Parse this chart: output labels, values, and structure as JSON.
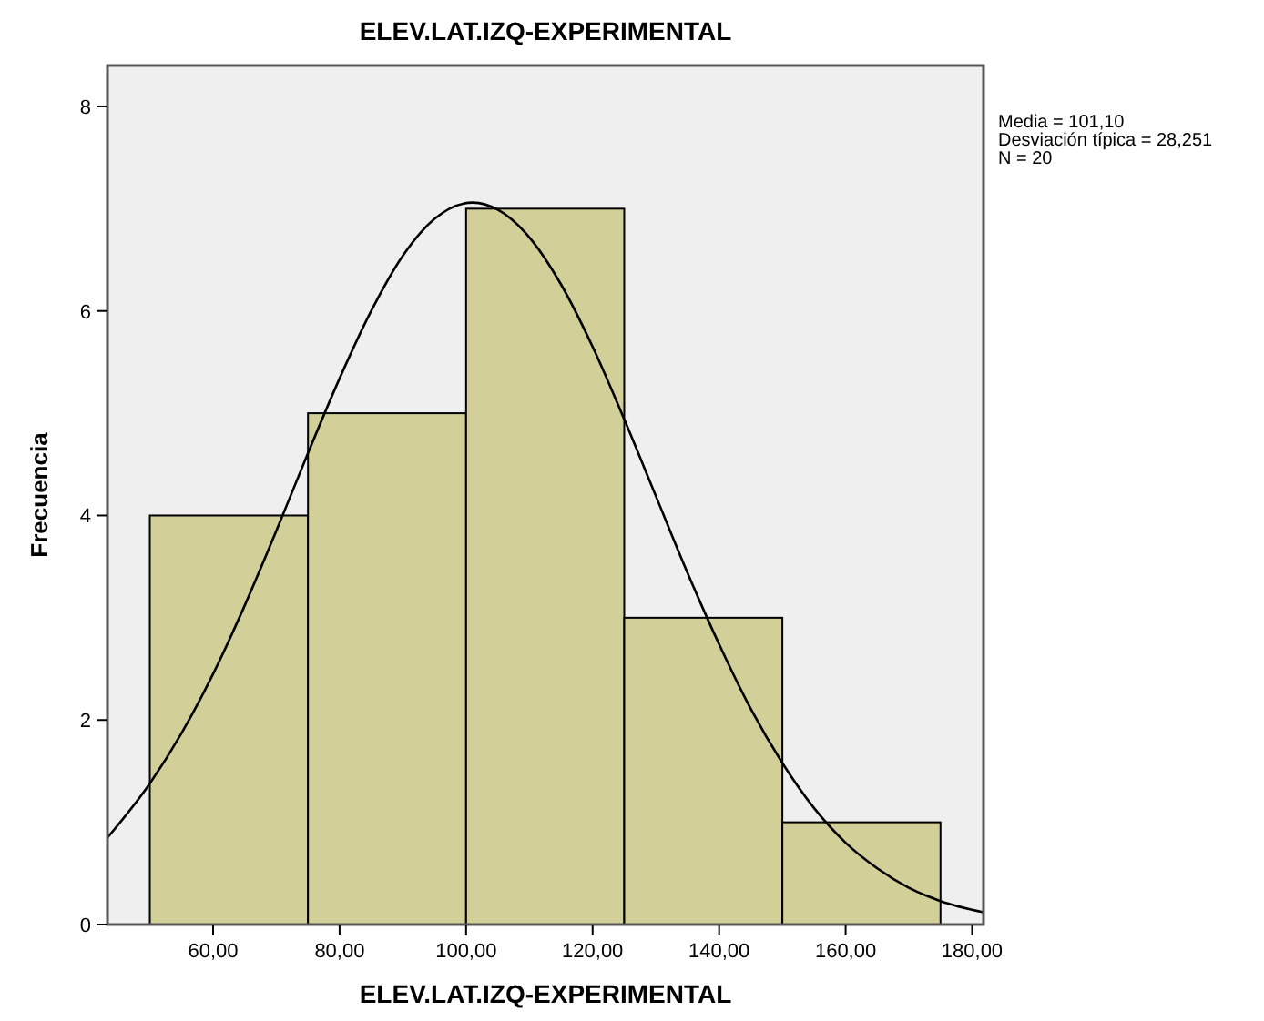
{
  "chart_data": {
    "type": "histogram",
    "title": "ELEV.LAT.IZQ-EXPERIMENTAL",
    "xlabel": "ELEV.LAT.IZQ-EXPERIMENTAL",
    "ylabel": "Frecuencia",
    "bins": [
      50,
      75,
      100,
      125,
      150,
      175
    ],
    "series": [
      {
        "color": "#d3cf98",
        "values": [
          4,
          5,
          7,
          3,
          1
        ]
      },
      {
        "type": "line",
        "color": "#000000",
        "x": [
          43.3,
          50,
          55,
          60,
          65,
          70,
          75,
          80,
          85,
          90,
          95,
          101.1,
          105,
          110,
          115,
          120,
          125,
          130,
          135,
          140,
          145,
          150,
          155,
          160,
          165,
          170,
          175,
          181.8
        ],
        "values": [
          0.85,
          1.38,
          1.87,
          2.45,
          3.12,
          3.85,
          4.61,
          5.34,
          6.0,
          6.54,
          6.9,
          7.06,
          6.99,
          6.72,
          6.26,
          5.65,
          4.94,
          4.19,
          3.44,
          2.74,
          2.11,
          1.58,
          1.14,
          0.8,
          0.55,
          0.36,
          0.23,
          0.12
        ]
      }
    ],
    "xlim": [
      43.3,
      181.8
    ],
    "ylim": [
      0,
      8.4
    ],
    "xticks": [
      {
        "value": 60,
        "label": "60,00"
      },
      {
        "value": 80,
        "label": "80,00"
      },
      {
        "value": 100,
        "label": "100,00"
      },
      {
        "value": 120,
        "label": "120,00"
      },
      {
        "value": 140,
        "label": "140,00"
      },
      {
        "value": 160,
        "label": "160,00"
      },
      {
        "value": 180,
        "label": "180,00"
      }
    ],
    "yticks": [
      0,
      2,
      4,
      6,
      8
    ],
    "grid": false,
    "marker": "none",
    "line_style": "solid",
    "annotations": [
      "Media = 101,10",
      "Desviación típica = 28,251",
      "N = 20"
    ]
  }
}
